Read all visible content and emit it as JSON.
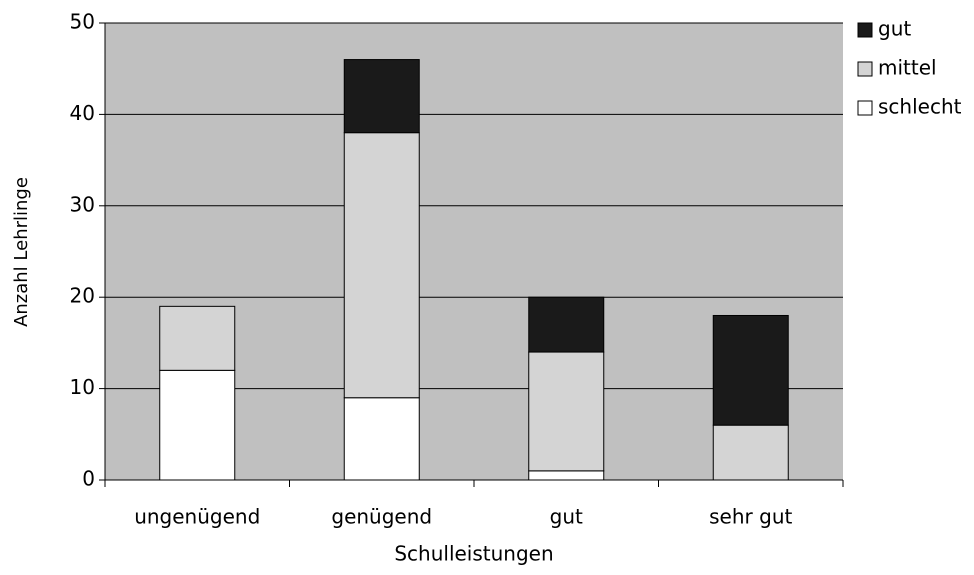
{
  "chart_data": {
    "type": "stacked_bar",
    "xlabel": "Schulleistungen",
    "ylabel": "Anzahl Lehrlinge",
    "categories": [
      "ungenügend",
      "genügend",
      "gut",
      "sehr gut"
    ],
    "series": [
      {
        "name": "schlecht",
        "color": "#ffffff",
        "values": [
          12,
          9,
          1,
          0
        ]
      },
      {
        "name": "mittel",
        "color": "#d4d4d4",
        "values": [
          7,
          29,
          13,
          6
        ]
      },
      {
        "name": "gut",
        "color": "#1a1a1a",
        "values": [
          0,
          8,
          6,
          12
        ]
      }
    ],
    "ylim": [
      0,
      50
    ],
    "yticks": [
      0,
      10,
      20,
      30,
      40,
      50
    ],
    "grid": true,
    "legend": "right"
  }
}
